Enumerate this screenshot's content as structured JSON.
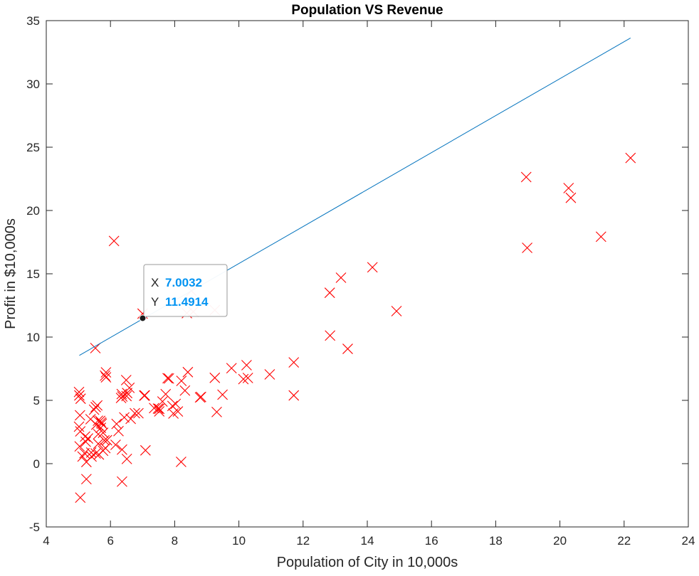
{
  "chart_data": {
    "type": "scatter",
    "title": "Population VS Revenue",
    "xlabel": "Population of City in 10,000s",
    "ylabel": "Profit in $10,000s",
    "xlim": [
      4,
      24
    ],
    "ylim": [
      -5,
      35
    ],
    "xticks": [
      4,
      6,
      8,
      10,
      12,
      14,
      16,
      18,
      20,
      22,
      24
    ],
    "yticks": [
      -5,
      0,
      5,
      10,
      15,
      20,
      25,
      30,
      35
    ],
    "grid": false,
    "series": [
      {
        "type": "scatter",
        "marker": "x",
        "color": "#ff0000",
        "points": [
          [
            6.11,
            17.59
          ],
          [
            5.53,
            9.13
          ],
          [
            8.52,
            13.66
          ],
          [
            7.0,
            11.85
          ],
          [
            5.86,
            6.82
          ],
          [
            8.38,
            11.89
          ],
          [
            7.48,
            4.35
          ],
          [
            8.58,
            12.0
          ],
          [
            6.49,
            6.6
          ],
          [
            5.05,
            3.82
          ],
          [
            5.71,
            3.25
          ],
          [
            14.16,
            15.51
          ],
          [
            5.73,
            3.16
          ],
          [
            8.41,
            7.23
          ],
          [
            5.64,
            0.72
          ],
          [
            5.38,
            3.51
          ],
          [
            6.37,
            5.3
          ],
          [
            5.13,
            0.56
          ],
          [
            6.43,
            3.65
          ],
          [
            7.07,
            5.39
          ],
          [
            6.19,
            3.14
          ],
          [
            20.27,
            21.77
          ],
          [
            5.49,
            4.26
          ],
          [
            6.33,
            5.19
          ],
          [
            5.56,
            3.08
          ],
          [
            18.95,
            22.64
          ],
          [
            12.83,
            13.5
          ],
          [
            10.96,
            7.05
          ],
          [
            13.18,
            14.69
          ],
          [
            22.2,
            24.15
          ],
          [
            5.25,
            -1.22
          ],
          [
            6.59,
            5.99
          ],
          [
            9.25,
            12.13
          ],
          [
            5.89,
            1.85
          ],
          [
            8.21,
            6.54
          ],
          [
            7.93,
            4.56
          ],
          [
            8.1,
            4.12
          ],
          [
            5.61,
            3.39
          ],
          [
            12.84,
            10.12
          ],
          [
            6.35,
            5.5
          ],
          [
            5.41,
            0.56
          ],
          [
            6.87,
            3.98
          ],
          [
            11.71,
            5.39
          ],
          [
            5.77,
            2.44
          ],
          [
            7.82,
            6.73
          ],
          [
            7.09,
            1.05
          ],
          [
            5.07,
            5.13
          ],
          [
            5.81,
            1.84
          ],
          [
            11.71,
            8.0
          ],
          [
            5.77,
            1.02
          ],
          [
            7.78,
            6.75
          ],
          [
            7.52,
            4.13
          ],
          [
            8.03,
            4.72
          ],
          [
            20.34,
            21.0
          ],
          [
            10.14,
            6.68
          ],
          [
            7.72,
            5.49
          ],
          [
            6.76,
            3.98
          ],
          [
            5.02,
            5.66
          ],
          [
            5.04,
            1.36
          ],
          [
            5.54,
            4.47
          ],
          [
            5.54,
            0.81
          ],
          [
            5.7,
            2.83
          ],
          [
            6.5,
            5.34
          ],
          [
            5.19,
            0.83
          ],
          [
            5.84,
            1.23
          ],
          [
            5.06,
            2.55
          ],
          [
            5.21,
            2.14
          ],
          [
            5.86,
            7.21
          ],
          [
            5.3,
            1.99
          ],
          [
            5.25,
            0.13
          ],
          [
            5.83,
            6.95
          ],
          [
            7.62,
            4.91
          ],
          [
            6.51,
            0.37
          ],
          [
            5.23,
            1.73
          ],
          [
            7.52,
            4.33
          ],
          [
            5.62,
            1.57
          ],
          [
            5.4,
            0.88
          ],
          [
            8.82,
            5.27
          ],
          [
            6.52,
            5.58
          ],
          [
            6.16,
            1.49
          ],
          [
            8.2,
            0.14
          ],
          [
            9.25,
            6.78
          ],
          [
            9.31,
            4.08
          ],
          [
            21.28,
            17.93
          ],
          [
            18.98,
            17.05
          ],
          [
            7.96,
            3.96
          ],
          [
            5.06,
            -2.68
          ],
          [
            5.68,
            3.38
          ],
          [
            5.03,
            5.39
          ],
          [
            6.25,
            2.57
          ],
          [
            9.49,
            5.45
          ],
          [
            9.77,
            7.54
          ],
          [
            10.24,
            7.78
          ],
          [
            14.91,
            12.05
          ],
          [
            13.39,
            9.07
          ],
          [
            7.36,
            4.39
          ],
          [
            5.62,
            2.33
          ],
          [
            5.59,
            4.6
          ],
          [
            10.28,
            6.77
          ],
          [
            8.32,
            5.77
          ],
          [
            8.79,
            5.23
          ],
          [
            6.36,
            1.11
          ],
          [
            6.36,
            -1.42
          ],
          [
            5.02,
            2.92
          ],
          [
            6.63,
            3.54
          ],
          [
            7.05,
            5.37
          ]
        ]
      },
      {
        "type": "line",
        "color": "#0072bd",
        "points": [
          [
            5.03,
            8.55
          ],
          [
            22.2,
            33.63
          ]
        ]
      }
    ],
    "datatip": {
      "x_key": "X",
      "y_key": "Y",
      "x_value": "7.0032",
      "y_value": "11.4914",
      "point": [
        7.0032,
        11.4914
      ],
      "value_color": "#0093f2"
    }
  }
}
